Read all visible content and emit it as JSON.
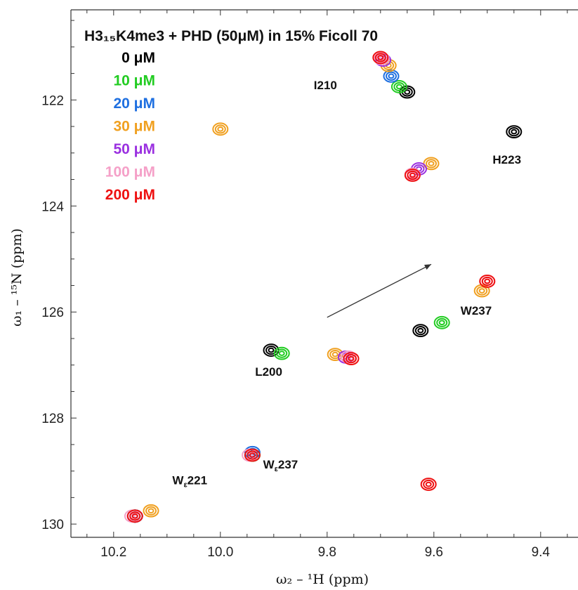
{
  "chart_data": {
    "type": "scatter",
    "title": "H3₁₅K4me3 + PHD (50μM) in 15% Ficoll 70",
    "xlabel": "ω₂ – ¹H (ppm)",
    "ylabel": "ω₁ – ¹⁵N (ppm)",
    "xlim": [
      10.28,
      9.33
    ],
    "ylim": [
      120.3,
      130.25
    ],
    "x_ticks": [
      "10.2",
      "10.0",
      "9.8",
      "9.6",
      "9.4"
    ],
    "y_ticks": [
      "122",
      "124",
      "126",
      "128",
      "130"
    ],
    "legend_placement": "top-left",
    "series": [
      {
        "name": "0 μM",
        "color": "#000000",
        "peaks": [
          [
            9.65,
            121.85
          ],
          [
            9.45,
            122.6
          ],
          [
            9.625,
            126.35
          ],
          [
            9.905,
            126.72
          ],
          [
            9.94,
            128.7
          ],
          [
            10.16,
            129.85
          ]
        ]
      },
      {
        "name": "10 μM",
        "color": "#22cc22",
        "peaks": [
          [
            9.665,
            121.75
          ],
          [
            9.585,
            126.2
          ],
          [
            9.94,
            128.7
          ],
          [
            9.885,
            126.78
          ],
          [
            10.16,
            129.85
          ]
        ]
      },
      {
        "name": "20 μM",
        "color": "#1e6fe0",
        "peaks": [
          [
            9.68,
            121.55
          ],
          [
            9.94,
            128.65
          ],
          [
            10.16,
            129.85
          ]
        ]
      },
      {
        "name": "30 μM",
        "color": "#f0a020",
        "peaks": [
          [
            9.685,
            121.35
          ],
          [
            9.605,
            123.2
          ],
          [
            9.51,
            125.6
          ],
          [
            9.785,
            126.8
          ],
          [
            10.13,
            129.75
          ],
          [
            10.0,
            122.55
          ]
        ]
      },
      {
        "name": "50 μM",
        "color": "#9a30e0",
        "peaks": [
          [
            9.695,
            121.25
          ],
          [
            9.628,
            123.3
          ],
          [
            9.765,
            126.85
          ],
          [
            10.16,
            129.85
          ]
        ]
      },
      {
        "name": "100 μM",
        "color": "#f5a0c8",
        "peaks": [
          [
            9.698,
            121.22
          ],
          [
            9.64,
            123.4
          ],
          [
            9.5,
            125.42
          ],
          [
            9.76,
            126.85
          ],
          [
            9.945,
            128.7
          ],
          [
            10.165,
            129.85
          ]
        ]
      },
      {
        "name": "200 μM",
        "color": "#ee1111",
        "peaks": [
          [
            9.7,
            121.2
          ],
          [
            9.64,
            123.42
          ],
          [
            9.5,
            125.42
          ],
          [
            9.755,
            126.88
          ],
          [
            9.94,
            128.7
          ],
          [
            10.16,
            129.85
          ],
          [
            9.61,
            129.25
          ]
        ]
      }
    ],
    "annotations": [
      {
        "text": "I210",
        "x": 9.825,
        "y": 121.8
      },
      {
        "text": "H223",
        "x": 9.49,
        "y": 123.2
      },
      {
        "text": "W237",
        "x": 9.55,
        "y": 126.05
      },
      {
        "text": "L200",
        "x": 9.935,
        "y": 127.2
      },
      {
        "text": "W",
        "sub": "ε",
        "text2": "237",
        "x": 9.92,
        "y": 128.95
      },
      {
        "text": "W",
        "sub": "ε",
        "text2": "221",
        "x": 10.09,
        "y": 129.25
      }
    ],
    "arrow": {
      "from": [
        9.8,
        126.1
      ],
      "to": [
        9.605,
        125.1
      ]
    }
  }
}
